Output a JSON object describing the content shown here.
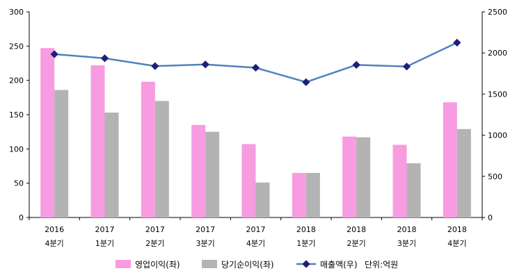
{
  "chart_data": {
    "type": "bar",
    "categories": [
      [
        "2016",
        "4분기"
      ],
      [
        "2017",
        "1분기"
      ],
      [
        "2017",
        "2분기"
      ],
      [
        "2017",
        "3분기"
      ],
      [
        "2017",
        "4분기"
      ],
      [
        "2018",
        "1분기"
      ],
      [
        "2018",
        "2분기"
      ],
      [
        "2018",
        "3분기"
      ],
      [
        "2018",
        "4분기"
      ]
    ],
    "series": [
      {
        "name": "영업이익(좌)",
        "type": "bar",
        "axis": "left",
        "color": "#f79ce0",
        "values": [
          247,
          222,
          198,
          135,
          107,
          65,
          118,
          106,
          168
        ]
      },
      {
        "name": "당기순이익(좌)",
        "type": "bar",
        "axis": "left",
        "color": "#b3b3b3",
        "values": [
          186,
          153,
          170,
          125,
          51,
          65,
          117,
          79,
          129
        ]
      },
      {
        "name": "매출액(우)",
        "type": "line",
        "axis": "right",
        "color": "#4f81bd",
        "marker_color": "#1f1f7a",
        "values": [
          1985,
          1935,
          1840,
          1860,
          1820,
          1645,
          1855,
          1835,
          2125
        ]
      }
    ],
    "y_left": {
      "min": 0,
      "max": 300,
      "ticks": [
        0,
        50,
        100,
        150,
        200,
        250,
        300
      ]
    },
    "y_right": {
      "min": 0,
      "max": 2500,
      "ticks": [
        0,
        500,
        1000,
        1500,
        2000,
        2500
      ]
    },
    "grid": false,
    "legend_position": "bottom",
    "unit_note": "단위:억원"
  }
}
